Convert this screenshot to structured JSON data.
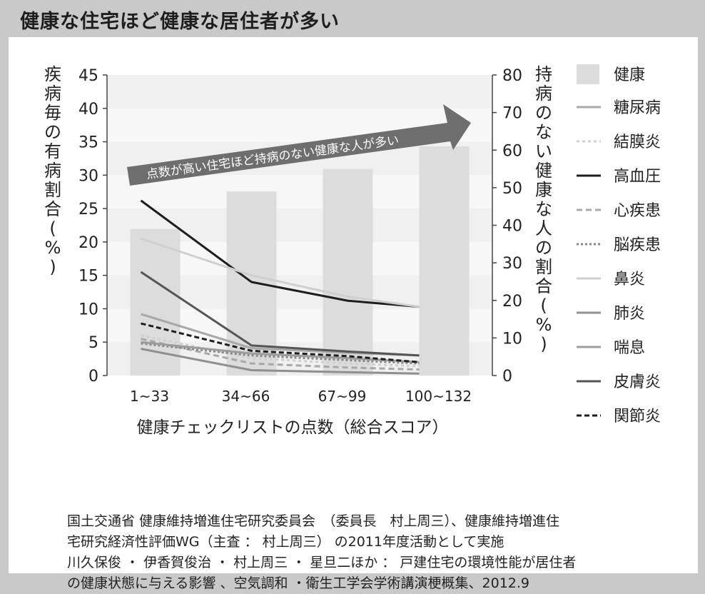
{
  "header": {
    "title": "健康な住宅ほど健康な居住者が多い"
  },
  "chart_data": {
    "type": "bar+line",
    "categories": [
      "1~33",
      "34~66",
      "67~99",
      "100~132"
    ],
    "xlabel": "健康チェックリストの点数（総合スコア）",
    "ylabel_left": "疾病毎の有病割合（%）",
    "ylabel_right": "持病のない健康な人の割合（%）",
    "ylim_left": [
      0,
      45
    ],
    "ylim_right": [
      0,
      80
    ],
    "yticks_left": [
      "0",
      "5",
      "10",
      "15",
      "20",
      "25",
      "30",
      "35",
      "40",
      "45"
    ],
    "yticks_right": [
      "0",
      "10",
      "20",
      "30",
      "40",
      "50",
      "60",
      "70",
      "80"
    ],
    "grid": "horizontal bands",
    "legend_position": "right",
    "annotation": "点数が高い住宅ほど持病のない健康な人が多い",
    "bars": {
      "name": "健康",
      "axis": "right",
      "color": "#dcdcdc",
      "values": [
        39,
        49,
        55,
        61
      ]
    },
    "series": [
      {
        "name": "糖尿病",
        "color": "#a8a8a8",
        "dash": "",
        "width": 3,
        "values": [
          9.2,
          4.1,
          3.4,
          3.0
        ]
      },
      {
        "name": "結膜炎",
        "color": "#d0d0d0",
        "dash": "4 4",
        "width": 3,
        "values": [
          6.0,
          2.6,
          1.8,
          1.4
        ]
      },
      {
        "name": "高血圧",
        "color": "#1e1e1e",
        "dash": "",
        "width": 3,
        "values": [
          26.2,
          14.0,
          11.2,
          10.3
        ]
      },
      {
        "name": "心疾患",
        "color": "#a8a8a8",
        "dash": "8 5",
        "width": 3,
        "values": [
          5.5,
          1.8,
          1.2,
          0.9
        ]
      },
      {
        "name": "脳疾患",
        "color": "#888888",
        "dash": "3 3",
        "width": 3,
        "values": [
          4.8,
          3.0,
          2.3,
          1.8
        ]
      },
      {
        "name": "鼻炎",
        "color": "#cfcfcf",
        "dash": "",
        "width": 3,
        "values": [
          20.5,
          15.0,
          11.8,
          10.3
        ]
      },
      {
        "name": "肺炎",
        "color": "#8f8f8f",
        "dash": "",
        "width": 3,
        "values": [
          4.0,
          0.8,
          0.5,
          0.3
        ]
      },
      {
        "name": "喘息",
        "color": "#9c9c9c",
        "dash": "",
        "width": 3,
        "values": [
          5.0,
          3.3,
          2.6,
          2.0
        ]
      },
      {
        "name": "皮膚炎",
        "color": "#555555",
        "dash": "",
        "width": 3,
        "values": [
          15.5,
          4.5,
          3.6,
          3.0
        ]
      },
      {
        "name": "関節炎",
        "color": "#1e1e1e",
        "dash": "7 4",
        "width": 3,
        "values": [
          7.8,
          3.7,
          2.9,
          2.0
        ]
      }
    ]
  },
  "source": {
    "lines": [
      "国土交通省 健康維持増進住宅研究委員会　（委員長　村上周三）、健康維持増進住",
      "宅研究経済性評価WG（主査 ： 村上周三） の2011年度活動として実施",
      "川久保俊 ・ 伊香賀俊治 ・ 村上周三 ・ 星旦二ほか ： 戸建住宅の環境性能が居住者",
      "の健康状態に与える影響 、空気調和 ・衛生工学会学術講演梗概集、2012.9"
    ]
  }
}
